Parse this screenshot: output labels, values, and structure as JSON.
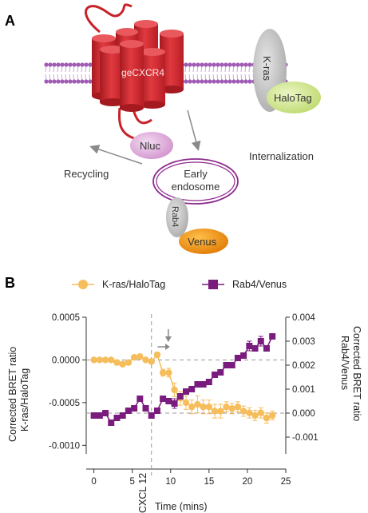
{
  "panel_a": {
    "letter": "A",
    "labels": {
      "receptor": "geCXCR4",
      "kras": "K-ras",
      "halotag": "HaloTag",
      "nluc": "Nluc",
      "endosome_line1": "Early",
      "endosome_line2": "endosome",
      "rab4": "Rab4",
      "venus": "Venus",
      "recycling": "Recycling",
      "internalization": "Internalization"
    },
    "colors": {
      "receptor": "#d7282f",
      "membrane": "#a05cb5",
      "kras": "#c8c8c8",
      "halotag": "#cfe58f",
      "nluc": "#e2b6df",
      "endosome": "#8e2a8e",
      "venus": "#f0900e",
      "arrow": "#8a8a8a"
    }
  },
  "panel_b": {
    "letter": "B",
    "chart_data": {
      "type": "line",
      "xlabel": "Time (mins)",
      "ylabel_left": [
        "Corrected BRET ratio",
        "K-ras/HaloTag"
      ],
      "ylabel_right": [
        "Corrected BRET ratio",
        "Rab4/Venus"
      ],
      "xlim": [
        -1,
        25
      ],
      "ylim_left": [
        -0.0011,
        0.0005
      ],
      "ylim_right": [
        -0.0017,
        0.004
      ],
      "x_ticks": [
        "0",
        "5",
        "10",
        "15",
        "20",
        "25"
      ],
      "y_ticks_left": [
        "0.0005",
        "0.0000",
        "-0.0005",
        "-0.0010"
      ],
      "y_ticks_right": [
        "0.004",
        "0.003",
        "0.002",
        "0.001",
        "0.000",
        "-0.001"
      ],
      "annotation": "CXCL 12",
      "annotation_x": 7.5,
      "legend": {
        "position": "top"
      },
      "series": [
        {
          "name": "K-ras/HaloTag",
          "axis": "left",
          "color": "#f5bd5b",
          "marker": "circle",
          "x": [
            0,
            0.75,
            1.5,
            2.25,
            3,
            3.75,
            4.5,
            5.25,
            6,
            6.75,
            7.5,
            8.25,
            9,
            9.75,
            10.5,
            11.25,
            12,
            12.75,
            13.5,
            14.25,
            15,
            15.75,
            16.5,
            17.25,
            18,
            18.75,
            19.5,
            20.25,
            21,
            21.75,
            22.5,
            23.25
          ],
          "y": [
            0.0,
            0.0,
            0.0,
            0.0,
            -3e-05,
            -5e-05,
            -3e-05,
            3e-05,
            4e-05,
            0.0,
            -2e-05,
            6e-05,
            -0.00015,
            -0.00015,
            -0.00035,
            -0.00045,
            -0.0005,
            -0.00055,
            -0.00052,
            -0.00055,
            -0.00055,
            -0.0006,
            -0.0006,
            -0.00055,
            -0.00057,
            -0.00055,
            -0.0006,
            -0.00062,
            -0.00065,
            -0.00062,
            -0.00068,
            -0.00065
          ],
          "err": [
            2e-05,
            2e-05,
            2e-05,
            2e-05,
            3e-05,
            2e-05,
            2e-05,
            2e-05,
            2e-05,
            2e-05,
            2e-05,
            3e-05,
            4e-05,
            5e-05,
            8e-05,
            8e-05,
            8e-05,
            8e-05,
            0.0001,
            8e-05,
            8e-05,
            8e-05,
            8e-05,
            6e-05,
            6e-05,
            6e-05,
            6e-05,
            6e-05,
            6e-05,
            6e-05,
            6e-05,
            5e-05
          ]
        },
        {
          "name": "Rab4/Venus",
          "axis": "right",
          "color": "#7a1b7e",
          "marker": "square",
          "x": [
            0,
            0.75,
            1.5,
            2.25,
            3,
            3.75,
            4.5,
            5.25,
            6,
            6.75,
            7.5,
            8.25,
            9,
            9.75,
            10.5,
            11.25,
            12,
            12.75,
            13.5,
            14.25,
            15,
            15.75,
            16.5,
            17.25,
            18,
            18.75,
            19.5,
            20.25,
            21,
            21.75,
            22.5,
            23.25
          ],
          "y": [
            -0.0001,
            -0.0001,
            0.0,
            -0.0004,
            -0.0002,
            -0.0001,
            0.0001,
            0.0002,
            0.0006,
            0.0002,
            -0.0001,
            0.0001,
            0.0006,
            0.0005,
            0.0004,
            0.0007,
            0.0009,
            0.001,
            0.0012,
            0.0012,
            0.0013,
            0.0016,
            0.0017,
            0.002,
            0.002,
            0.0023,
            0.0024,
            0.0028,
            0.0027,
            0.003,
            0.0027,
            0.0032
          ],
          "err": [
            0.0001,
            0.0001,
            0.0001,
            0.0001,
            0.0001,
            0.0001,
            0.0001,
            0.0001,
            0.0001,
            0.0001,
            0.0001,
            0.0001,
            0.0001,
            0.0001,
            0.0002,
            0.0001,
            0.0001,
            0.0001,
            0.0001,
            0.0001,
            0.0001,
            0.0001,
            0.0001,
            0.0001,
            0.0001,
            0.0001,
            0.0001,
            0.0002,
            0.0001,
            0.0002,
            0.0001,
            0.0001
          ]
        }
      ]
    }
  }
}
